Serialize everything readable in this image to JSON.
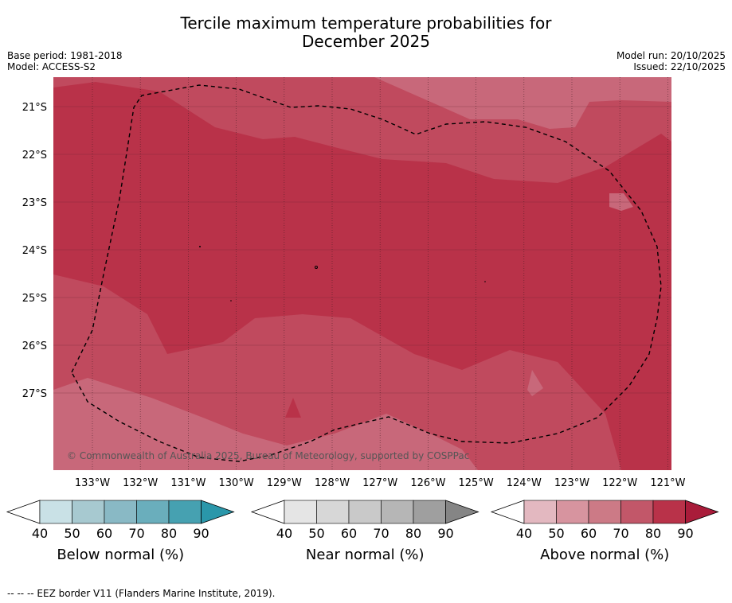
{
  "header": {
    "title_line1": "Tercile maximum temperature probabilities for",
    "title_line2": "December 2025",
    "base_period": "Base period: 1981-2018",
    "model": "Model: ACCESS-S2",
    "model_run": "Model run: 20/10/2025",
    "issued": "Issued: 22/10/2025"
  },
  "map": {
    "lat_labels": [
      "21°S",
      "22°S",
      "23°S",
      "24°S",
      "25°S",
      "26°S",
      "27°S"
    ],
    "lon_labels": [
      "133°W",
      "132°W",
      "131°W",
      "130°W",
      "129°W",
      "128°W",
      "127°W",
      "126°W",
      "125°W",
      "124°W",
      "123°W",
      "122°W",
      "121°W"
    ],
    "copyright": "© Commonwealth of Australia 2025, Bureau of Meteorology, supported by COSPPac",
    "colors": {
      "above_60_70": "#c8687a",
      "above_70_80": "#c04a5e",
      "above_80_90": "#b93249"
    }
  },
  "colorbars": [
    {
      "label": "Below normal (%)",
      "ticks": [
        "40",
        "50",
        "60",
        "70",
        "80",
        "90"
      ],
      "colors": [
        "#ffffff",
        "#c9e1e6",
        "#a7c9d0",
        "#89b9c5",
        "#6aaebc",
        "#46a1b1",
        "#2a97aa"
      ]
    },
    {
      "label": "Near normal (%)",
      "ticks": [
        "40",
        "50",
        "60",
        "70",
        "80",
        "90"
      ],
      "colors": [
        "#ffffff",
        "#e5e5e5",
        "#d7d7d7",
        "#c9c9c9",
        "#b6b6b6",
        "#9f9f9f",
        "#858585"
      ]
    },
    {
      "label": "Above normal (%)",
      "ticks": [
        "40",
        "50",
        "60",
        "70",
        "80",
        "90"
      ],
      "colors": [
        "#ffffff",
        "#e3b8c0",
        "#d7949f",
        "#cc7a86",
        "#c25769",
        "#b93249",
        "#a91c3a"
      ]
    }
  ],
  "footer": {
    "legend_text": "--  --  -- EEZ border V11 (Flanders Marine Institute, 2019)."
  }
}
